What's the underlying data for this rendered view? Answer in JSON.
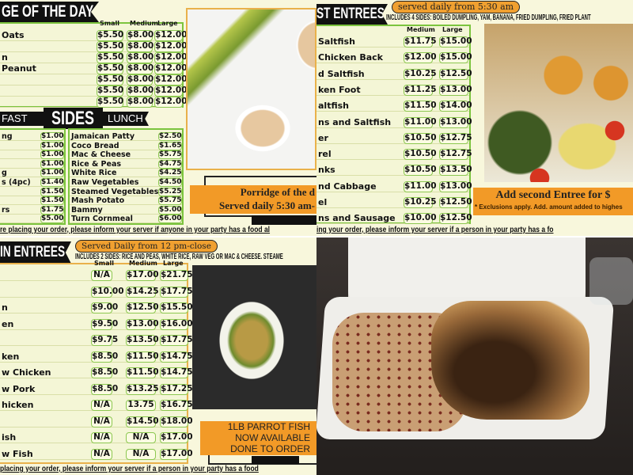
{
  "porridge": {
    "banner": "GE OF THE DAY",
    "headers": [
      "Small",
      "Medium",
      "Large"
    ],
    "rows": [
      {
        "name": "Oats",
        "p": [
          "$5.50",
          "$8.00",
          "$12.00"
        ]
      },
      {
        "name": "",
        "p": [
          "$5.50",
          "$8.00",
          "$12.00"
        ]
      },
      {
        "name": "n",
        "p": [
          "$5.50",
          "$8.00",
          "$12.00"
        ]
      },
      {
        "name": "Peanut",
        "p": [
          "$5.50",
          "$8.00",
          "$12.00"
        ]
      },
      {
        "name": "",
        "p": [
          "$5.50",
          "$8.00",
          "$12.00"
        ]
      },
      {
        "name": "",
        "p": [
          "$5.50",
          "$8.00",
          "$12.00"
        ]
      },
      {
        "name": "",
        "p": [
          "$5.50",
          "$8.00",
          "$12.00"
        ]
      }
    ],
    "promo_line1": "Porridge of the d",
    "promo_line2": "Served daily 5:30 am-",
    "footer": "re placing your order, please inform your server if anyone in your party has a food al"
  },
  "sides": {
    "tab_left": "FAST",
    "title": "SIDES",
    "tab_right": "LUNCH",
    "breakfast": [
      {
        "name": "ng",
        "p": "$1.00"
      },
      {
        "name": "",
        "p": "$1.00"
      },
      {
        "name": "",
        "p": "$1.00"
      },
      {
        "name": "",
        "p": "$1.00"
      },
      {
        "name": "g",
        "p": "$1.00"
      },
      {
        "name": "s (4pc)",
        "p": "$1.40"
      },
      {
        "name": "",
        "p": "$1.50"
      },
      {
        "name": "",
        "p": "$1.50"
      },
      {
        "name": "rs",
        "p": "$1.75"
      },
      {
        "name": "",
        "p": "$5.00"
      }
    ],
    "lunch": [
      {
        "name": "Jamaican Patty",
        "p": "$2.50"
      },
      {
        "name": "Coco Bread",
        "p": "$1.65"
      },
      {
        "name": "Mac & Cheese",
        "p": "$5.75"
      },
      {
        "name": "Rice & Peas",
        "p": "$4.75"
      },
      {
        "name": "White Rice",
        "p": "$4.25"
      },
      {
        "name": "Raw Vegetables",
        "p": "$4.50"
      },
      {
        "name": "Steamed Vegetables",
        "p": "$5.25"
      },
      {
        "name": "Mash Potato",
        "p": "$5.75"
      },
      {
        "name": "Bammy",
        "p": "$5.00"
      },
      {
        "name": "Turn Cornmeal",
        "p": "$6.00"
      }
    ]
  },
  "breakfast_entrees": {
    "banner": "ST ENTREES",
    "served": "served daily from  5:30 am",
    "includes": "INCLUDES 4 SIDES: BOILED DUMPLING, YAM, BANANA, FRIED DUMPLING, FRIED PLANT",
    "headers": [
      "Medium",
      "Large"
    ],
    "rows": [
      {
        "name": "Saltfish",
        "p": [
          "$11.75",
          "$15.00"
        ]
      },
      {
        "name": "Chicken Back",
        "p": [
          "$12.00",
          "$15.00"
        ]
      },
      {
        "name": "d Saltfish",
        "p": [
          "$10.25",
          "$12.50"
        ]
      },
      {
        "name": "ken Foot",
        "p": [
          "$11.25",
          "$13.00"
        ]
      },
      {
        "name": "altfish",
        "p": [
          "$11.50",
          "$14.00"
        ]
      },
      {
        "name": "ns and Saltfish",
        "p": [
          "$11.00",
          "$13.00"
        ]
      },
      {
        "name": "er",
        "p": [
          "$10.50",
          "$12.75"
        ]
      },
      {
        "name": "rel",
        "p": [
          "$10.50",
          "$12.75"
        ]
      },
      {
        "name": "nks",
        "p": [
          "$10.50",
          "$13.50"
        ]
      },
      {
        "name": "nd Cabbage",
        "p": [
          "$11.00",
          "$13.00"
        ]
      },
      {
        "name": "el",
        "p": [
          "$10.25",
          "$12.50"
        ]
      },
      {
        "name": "ns and Sausage",
        "p": [
          "$10.00",
          "$12.50"
        ]
      }
    ],
    "promo": "Add second Entree for $",
    "exclusions": "* Exclusions apply. Add. amount added to highes",
    "footer": "ing your order, please inform your server if a person in your party has a fo"
  },
  "lunch_entrees": {
    "banner": "IN ENTREES",
    "served": "Served Daily from 12 pm-close",
    "includes": "INCLUDES 2 SIDES: RICE AND PEAS, WHITE RICE, RAW VEG OR MAC & CHEESE. STEAME",
    "headers": [
      "Small",
      "Medium",
      "Large"
    ],
    "rows": [
      {
        "name": "",
        "p": [
          "N/A",
          "$17.00",
          "$21.75"
        ]
      },
      {
        "name": "",
        "p": [
          "$10.00",
          "$14.25",
          "$17.75"
        ]
      },
      {
        "name": "n",
        "p": [
          "$9.00",
          "$12.50",
          "$15.50"
        ]
      },
      {
        "name": "en",
        "p": [
          "$9.50",
          "$13.00",
          "$16.00"
        ]
      },
      {
        "name": "",
        "p": [
          "$9.75",
          "$13.50",
          "$17.75"
        ]
      },
      {
        "name": "ken",
        "p": [
          "$8.50",
          "$11.50",
          "$14.75"
        ]
      },
      {
        "name": "w Chicken",
        "p": [
          "$8.50",
          "$11.50",
          "$14.75"
        ]
      },
      {
        "name": "w Pork",
        "p": [
          "$8.50",
          "$13.25",
          "$17.25"
        ]
      },
      {
        "name": "hicken",
        "p": [
          "N/A",
          "13.75",
          "$16.75"
        ]
      },
      {
        "name": "",
        "p": [
          "N/A",
          "$14.50",
          "$18.00"
        ]
      },
      {
        "name": "ish",
        "p": [
          "N/A",
          "N/A",
          "$17.00"
        ]
      },
      {
        "name": "w Fish",
        "p": [
          "N/A",
          "N/A",
          "$17.00"
        ]
      }
    ],
    "promo": [
      "1LB PARROT FISH",
      "NOW AVAILABLE",
      "DONE TO ORDER"
    ],
    "footer": " placing your order, please inform your server if a person in your party has a food"
  },
  "colors": {
    "accent_green": "#7cc43e",
    "orange": "#f29a27",
    "banner": "#111111",
    "background": "#f8f7dc"
  }
}
